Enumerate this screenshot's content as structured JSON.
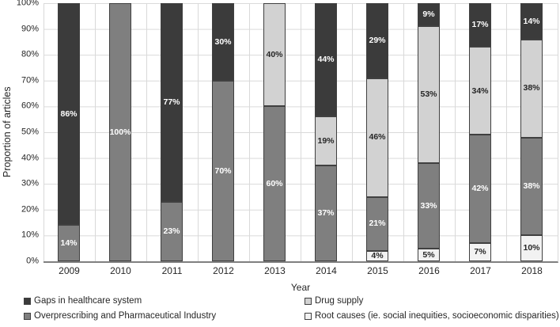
{
  "chart_data": {
    "type": "bar",
    "stacked": true,
    "title": "",
    "xlabel": "Year",
    "ylabel": "Proportion of articles",
    "ylim": [
      0,
      100
    ],
    "ytick_step": 10,
    "ytick_suffix": "%",
    "label_suffix": "%",
    "grid": true,
    "legend_position": "bottom",
    "categories": [
      "2009",
      "2010",
      "2011",
      "2012",
      "2013",
      "2014",
      "2015",
      "2016",
      "2017",
      "2018"
    ],
    "series": [
      {
        "name": "Root causes (ie. social inequities, socioeconomic disparities)",
        "color": "#f2f2f2",
        "label_color": "#262626",
        "values": [
          0,
          0,
          0,
          0,
          0,
          0,
          4,
          5,
          7,
          10
        ]
      },
      {
        "name": "Overprescribing and Pharmaceutical Industry",
        "color": "#7f7f7f",
        "label_color": "#ffffff",
        "values": [
          14,
          100,
          23,
          70,
          60,
          37,
          21,
          33,
          42,
          38
        ]
      },
      {
        "name": "Drug supply",
        "color": "#d2d2d2",
        "label_color": "#262626",
        "values": [
          0,
          0,
          0,
          0,
          40,
          19,
          46,
          53,
          34,
          38
        ]
      },
      {
        "name": "Gaps in healthcare system",
        "color": "#3b3b3b",
        "label_color": "#ffffff",
        "values": [
          86,
          0,
          77,
          30,
          0,
          44,
          29,
          9,
          17,
          14
        ]
      }
    ],
    "legend_order": [
      3,
      2,
      1,
      0
    ],
    "colors": {
      "gridline": "#d9d9d9",
      "axis_line": "#808080",
      "segment_border": "#404040",
      "text": "#262626",
      "background": "#ffffff"
    }
  }
}
